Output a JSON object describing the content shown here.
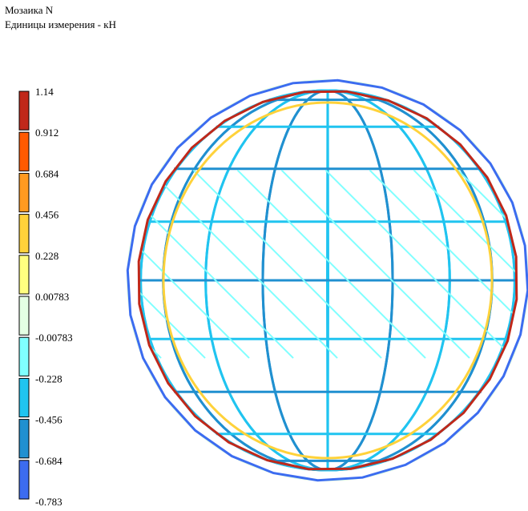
{
  "header": {
    "title": "Мозаика N",
    "units": "Единицы измерения - кН"
  },
  "legend": {
    "labels": [
      "1.14",
      "0.912",
      "0.684",
      "0.456",
      "0.228",
      "0.00783",
      "-0.00783",
      "-0.228",
      "-0.456",
      "-0.684",
      "-0.783"
    ],
    "colors": [
      "#c0281a",
      "#ff5a00",
      "#ff9a20",
      "#ffd23a",
      "#ffff80",
      "#e4ffe4",
      "#80ffff",
      "#20c4f0",
      "#2090d0",
      "#3c6cf0"
    ]
  }
}
